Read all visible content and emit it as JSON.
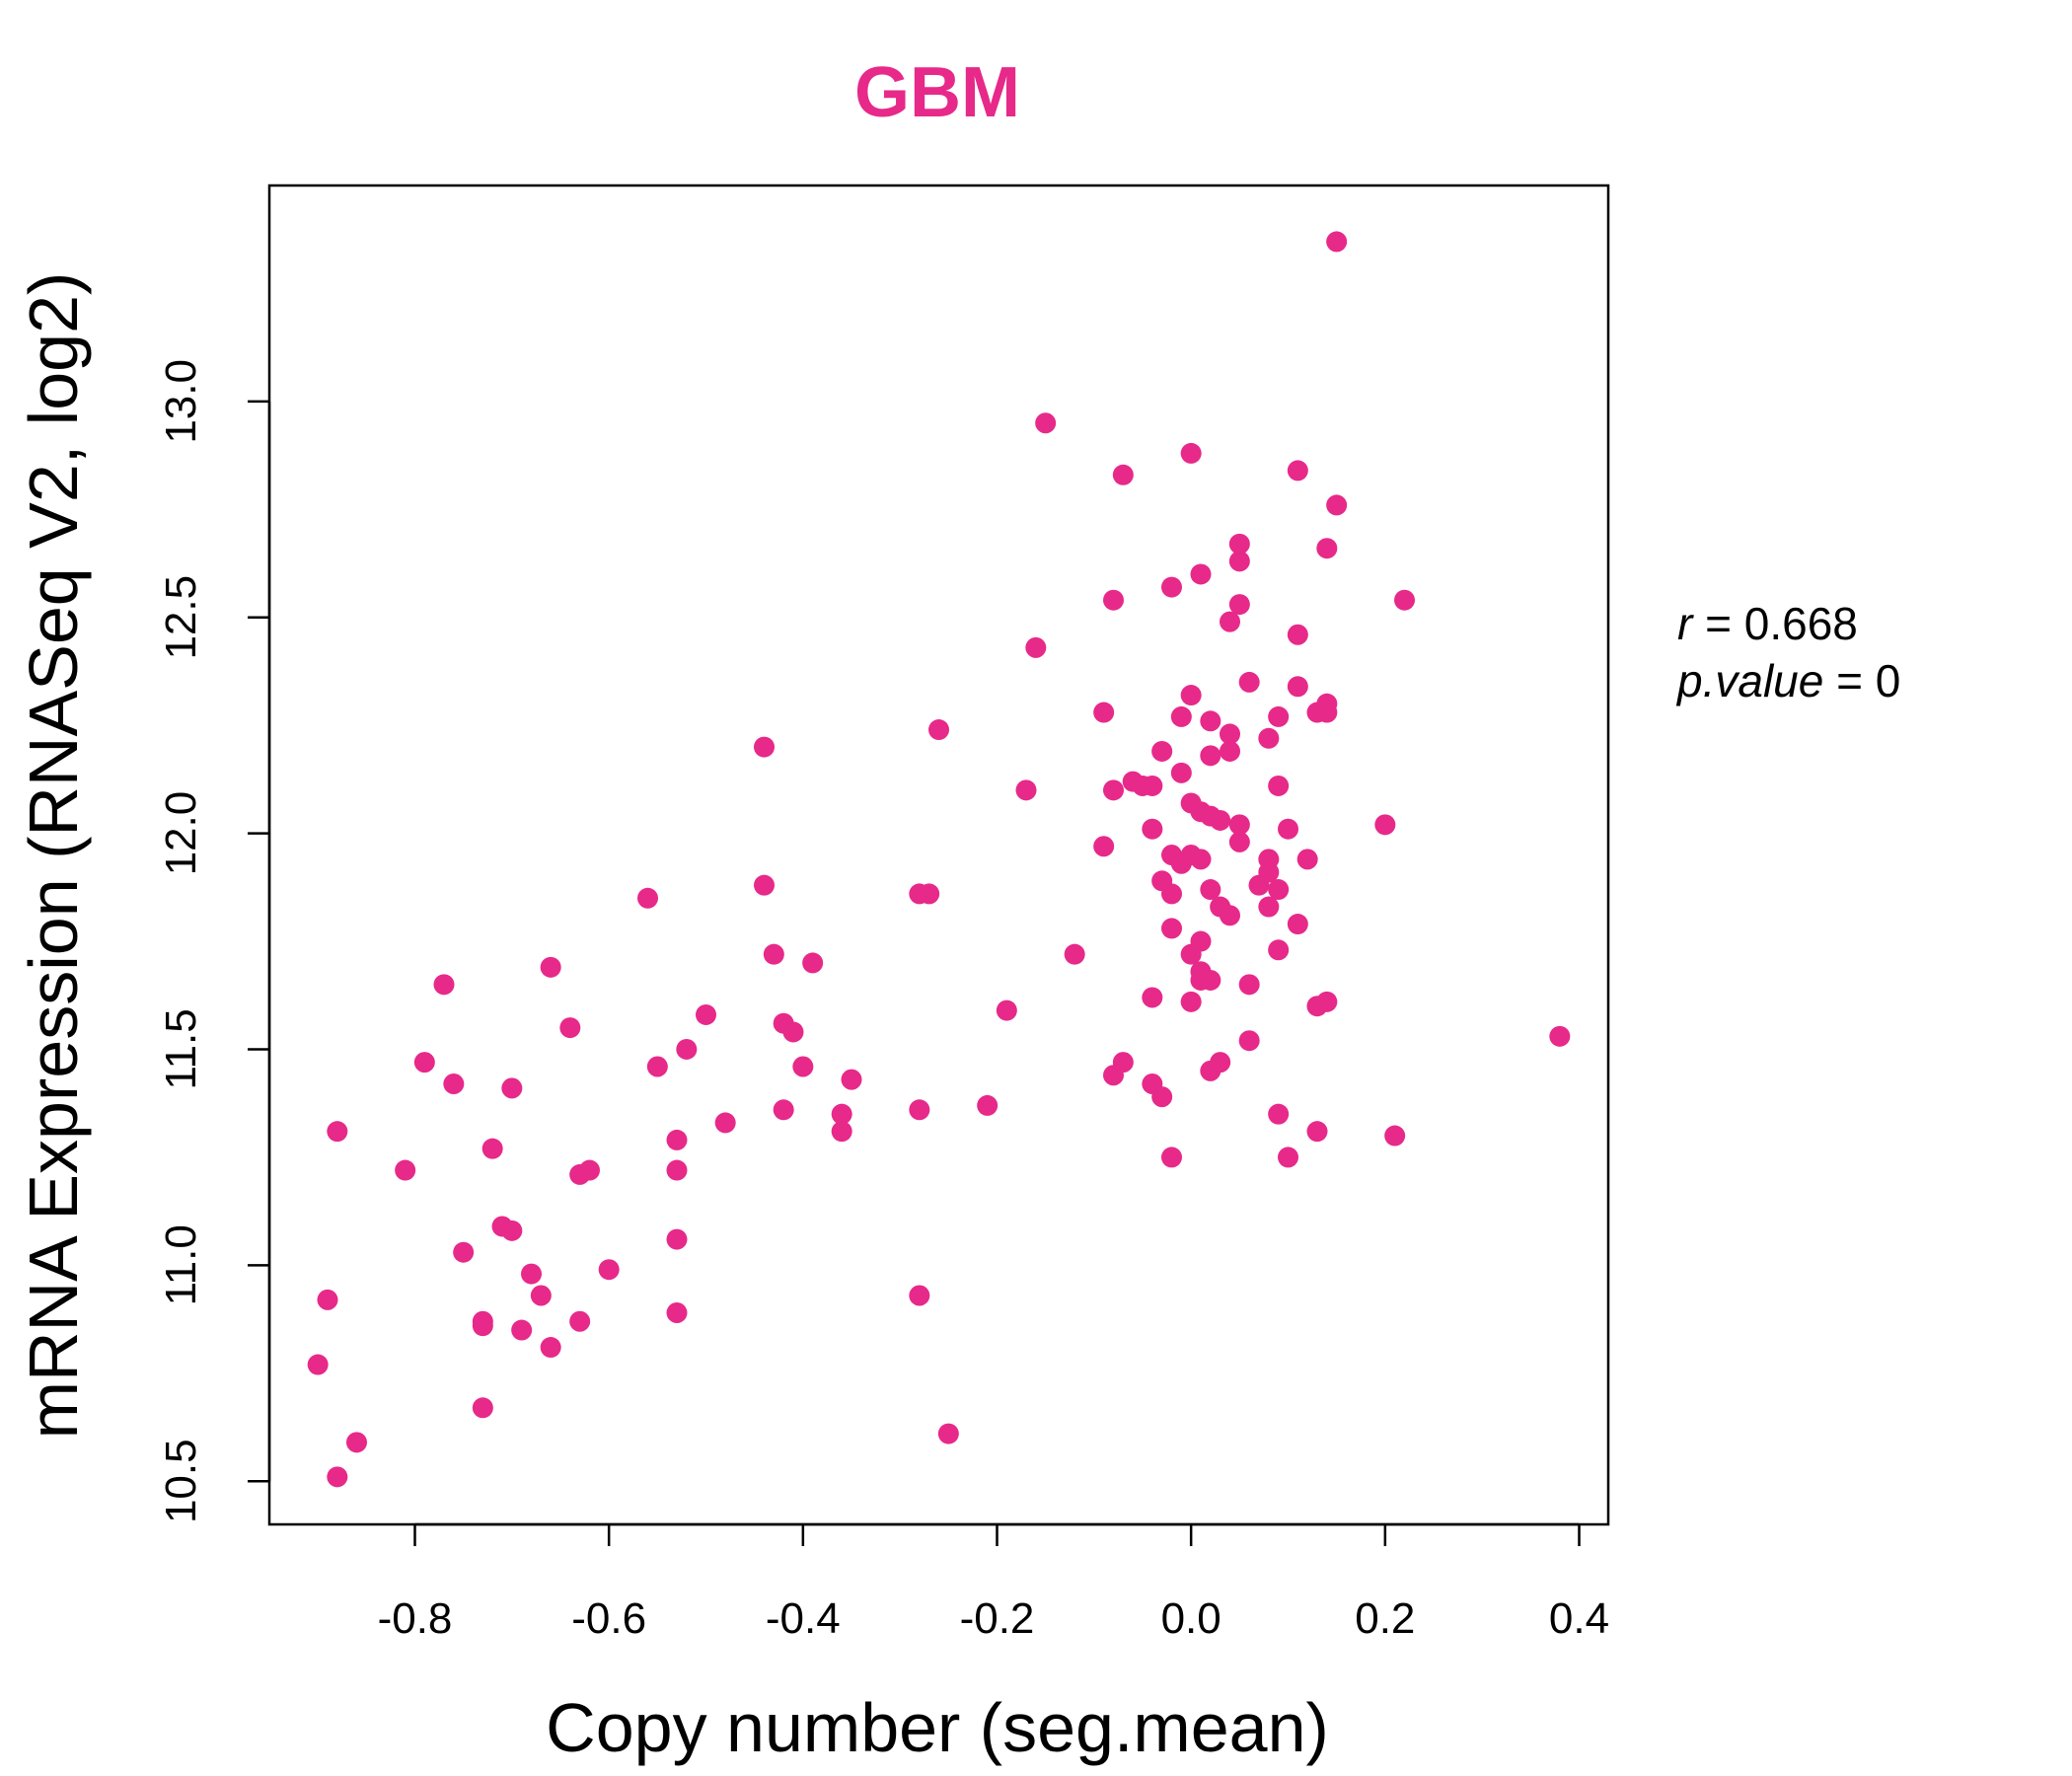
{
  "chart_data": {
    "type": "scatter",
    "title": "GBM",
    "xlabel": "Copy number (seg.mean)",
    "ylabel": "mRNA Expression (RNASeq V2, log2)",
    "xlim": [
      -0.95,
      0.43
    ],
    "ylim": [
      10.4,
      13.5
    ],
    "xticks": [
      "-0.8",
      "-0.6",
      "-0.4",
      "-0.2",
      "0.0",
      "0.2",
      "0.4"
    ],
    "yticks": [
      "10.5",
      "11.0",
      "11.5",
      "12.0",
      "12.5",
      "13.0"
    ],
    "grid": false,
    "color": "#E7298A",
    "annotation": {
      "r_label": "r",
      "r_value": "0.668",
      "p_label": "p.value",
      "p_value": "0"
    },
    "points": [
      [
        -0.9,
        10.77
      ],
      [
        -0.89,
        10.92
      ],
      [
        -0.88,
        10.51
      ],
      [
        -0.88,
        11.31
      ],
      [
        -0.86,
        10.59
      ],
      [
        -0.81,
        11.22
      ],
      [
        -0.79,
        11.47
      ],
      [
        -0.77,
        11.65
      ],
      [
        -0.76,
        11.42
      ],
      [
        -0.75,
        11.03
      ],
      [
        -0.73,
        10.87
      ],
      [
        -0.73,
        10.86
      ],
      [
        -0.73,
        10.67
      ],
      [
        -0.72,
        11.27
      ],
      [
        -0.71,
        11.09
      ],
      [
        -0.7,
        11.08
      ],
      [
        -0.7,
        11.41
      ],
      [
        -0.69,
        10.85
      ],
      [
        -0.68,
        10.98
      ],
      [
        -0.67,
        10.93
      ],
      [
        -0.66,
        11.69
      ],
      [
        -0.66,
        10.81
      ],
      [
        -0.64,
        11.55
      ],
      [
        -0.63,
        10.87
      ],
      [
        -0.63,
        11.21
      ],
      [
        -0.62,
        11.22
      ],
      [
        -0.6,
        10.99
      ],
      [
        -0.56,
        11.85
      ],
      [
        -0.55,
        11.46
      ],
      [
        -0.53,
        11.29
      ],
      [
        -0.53,
        11.22
      ],
      [
        -0.53,
        11.06
      ],
      [
        -0.53,
        10.89
      ],
      [
        -0.52,
        11.5
      ],
      [
        -0.5,
        11.58
      ],
      [
        -0.48,
        11.33
      ],
      [
        -0.44,
        11.88
      ],
      [
        -0.44,
        12.2
      ],
      [
        -0.43,
        11.72
      ],
      [
        -0.42,
        11.56
      ],
      [
        -0.42,
        11.36
      ],
      [
        -0.41,
        11.54
      ],
      [
        -0.4,
        11.46
      ],
      [
        -0.39,
        11.7
      ],
      [
        -0.36,
        11.35
      ],
      [
        -0.36,
        11.31
      ],
      [
        -0.35,
        11.43
      ],
      [
        -0.28,
        11.86
      ],
      [
        -0.28,
        11.36
      ],
      [
        -0.28,
        10.93
      ],
      [
        -0.27,
        11.86
      ],
      [
        -0.26,
        12.24
      ],
      [
        -0.25,
        10.61
      ],
      [
        -0.21,
        11.37
      ],
      [
        -0.19,
        11.59
      ],
      [
        -0.17,
        12.1
      ],
      [
        -0.16,
        12.43
      ],
      [
        -0.15,
        12.95
      ],
      [
        -0.12,
        11.72
      ],
      [
        -0.09,
        12.28
      ],
      [
        -0.09,
        11.97
      ],
      [
        -0.08,
        12.54
      ],
      [
        -0.08,
        11.44
      ],
      [
        -0.08,
        12.1
      ],
      [
        -0.07,
        12.83
      ],
      [
        -0.07,
        11.47
      ],
      [
        -0.06,
        12.12
      ],
      [
        -0.05,
        12.11
      ],
      [
        -0.04,
        12.11
      ],
      [
        -0.04,
        11.42
      ],
      [
        -0.04,
        12.01
      ],
      [
        -0.04,
        11.62
      ],
      [
        -0.03,
        12.19
      ],
      [
        -0.03,
        11.89
      ],
      [
        -0.03,
        11.39
      ],
      [
        -0.02,
        12.57
      ],
      [
        -0.02,
        11.95
      ],
      [
        -0.02,
        11.86
      ],
      [
        -0.02,
        11.78
      ],
      [
        -0.02,
        11.25
      ],
      [
        -0.01,
        11.93
      ],
      [
        -0.01,
        12.27
      ],
      [
        -0.01,
        12.14
      ],
      [
        0.0,
        12.07
      ],
      [
        0.0,
        11.72
      ],
      [
        0.0,
        11.61
      ],
      [
        0.0,
        12.88
      ],
      [
        0.0,
        12.32
      ],
      [
        0.0,
        11.95
      ],
      [
        0.01,
        12.6
      ],
      [
        0.01,
        12.05
      ],
      [
        0.01,
        11.94
      ],
      [
        0.01,
        11.75
      ],
      [
        0.01,
        11.68
      ],
      [
        0.01,
        11.66
      ],
      [
        0.02,
        12.26
      ],
      [
        0.02,
        12.04
      ],
      [
        0.02,
        11.87
      ],
      [
        0.02,
        11.45
      ],
      [
        0.02,
        11.66
      ],
      [
        0.02,
        12.18
      ],
      [
        0.03,
        11.83
      ],
      [
        0.03,
        11.47
      ],
      [
        0.03,
        12.03
      ],
      [
        0.04,
        11.81
      ],
      [
        0.04,
        12.49
      ],
      [
        0.04,
        12.19
      ],
      [
        0.04,
        12.23
      ],
      [
        0.05,
        12.63
      ],
      [
        0.05,
        12.67
      ],
      [
        0.05,
        11.98
      ],
      [
        0.05,
        12.53
      ],
      [
        0.05,
        12.02
      ],
      [
        0.06,
        11.65
      ],
      [
        0.06,
        12.35
      ],
      [
        0.06,
        11.52
      ],
      [
        0.07,
        11.88
      ],
      [
        0.08,
        12.22
      ],
      [
        0.08,
        11.83
      ],
      [
        0.08,
        11.94
      ],
      [
        0.08,
        11.91
      ],
      [
        0.09,
        11.73
      ],
      [
        0.09,
        12.27
      ],
      [
        0.09,
        11.87
      ],
      [
        0.09,
        12.11
      ],
      [
        0.09,
        11.35
      ],
      [
        0.1,
        11.25
      ],
      [
        0.1,
        12.01
      ],
      [
        0.11,
        12.34
      ],
      [
        0.11,
        12.84
      ],
      [
        0.11,
        11.79
      ],
      [
        0.11,
        12.46
      ],
      [
        0.12,
        11.94
      ],
      [
        0.13,
        11.31
      ],
      [
        0.13,
        12.28
      ],
      [
        0.13,
        11.6
      ],
      [
        0.14,
        12.66
      ],
      [
        0.14,
        12.3
      ],
      [
        0.14,
        11.61
      ],
      [
        0.14,
        12.28
      ],
      [
        0.15,
        13.37
      ],
      [
        0.15,
        12.76
      ],
      [
        0.2,
        12.02
      ],
      [
        0.21,
        11.3
      ],
      [
        0.22,
        12.54
      ],
      [
        0.38,
        11.53
      ]
    ]
  }
}
